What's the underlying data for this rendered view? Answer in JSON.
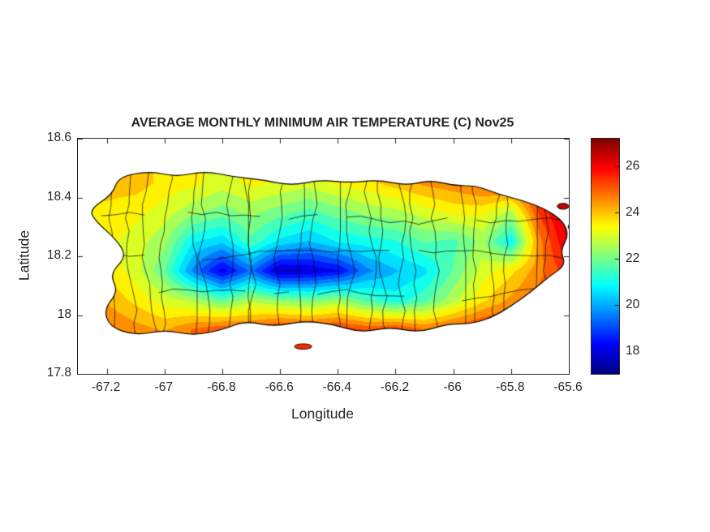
{
  "colors": {
    "background": "#ffffff",
    "axis": "#262626",
    "boundary_lines": "#000000",
    "island_outline": "#000000"
  },
  "chart_data": {
    "type": "heatmap",
    "title": "AVERAGE MONTHLY MINIMUM AIR TEMPERATURE (C) Nov25",
    "xlabel": "Longitude",
    "ylabel": "Latitude",
    "xlim": [
      -67.3,
      -65.6
    ],
    "ylim": [
      17.8,
      18.6
    ],
    "xticks": [
      -67.2,
      -67.0,
      -66.8,
      -66.6,
      -66.4,
      -66.2,
      -66.0,
      -65.8,
      -65.6
    ],
    "xtick_labels": [
      "-67.2",
      "-67",
      "-66.8",
      "-66.6",
      "-66.4",
      "-66.2",
      "-66",
      "-65.8",
      "-65.6"
    ],
    "yticks": [
      17.8,
      18.0,
      18.2,
      18.4,
      18.6
    ],
    "ytick_labels": [
      "17.8",
      "18",
      "18.2",
      "18.4",
      "18.6"
    ],
    "colormap": "jet",
    "clim": [
      17.0,
      27.2
    ],
    "colorbar_ticks": [
      18,
      20,
      22,
      24,
      26
    ],
    "colorbar_tick_labels": [
      "18",
      "20",
      "22",
      "24",
      "26"
    ],
    "contour_interval": 0.5,
    "legend": "colorbar-right",
    "grid": {
      "lons": [
        -67.2,
        -67.1,
        -67.0,
        -66.9,
        -66.8,
        -66.7,
        -66.6,
        -66.5,
        -66.4,
        -66.3,
        -66.2,
        -66.1,
        -66.0,
        -65.9,
        -65.8,
        -65.7,
        -65.6
      ],
      "lats": [
        17.95,
        18.05,
        18.15,
        18.25,
        18.35,
        18.45
      ],
      "values": [
        [
          24.8,
          24.5,
          24.2,
          24.8,
          25.2,
          25.0,
          25.6,
          25.4,
          25.6,
          25.2,
          25.4,
          24.8,
          25.2,
          25.6,
          25.8,
          25.4,
          25.6
        ],
        [
          24.2,
          23.6,
          23.0,
          22.6,
          21.8,
          22.6,
          22.2,
          22.0,
          22.4,
          21.6,
          21.0,
          21.6,
          22.6,
          23.6,
          24.4,
          25.0,
          25.4
        ],
        [
          23.6,
          23.0,
          21.8,
          19.6,
          18.0,
          19.4,
          17.6,
          17.8,
          18.2,
          19.6,
          20.2,
          20.6,
          21.8,
          23.0,
          23.6,
          24.6,
          25.6
        ],
        [
          23.4,
          23.0,
          22.4,
          20.8,
          20.4,
          21.6,
          20.6,
          20.2,
          20.8,
          21.0,
          21.2,
          21.8,
          21.6,
          22.4,
          20.8,
          24.6,
          26.4
        ],
        [
          23.6,
          23.4,
          23.0,
          22.4,
          22.0,
          22.4,
          22.0,
          21.6,
          22.0,
          22.4,
          22.6,
          23.0,
          23.4,
          23.4,
          22.6,
          25.4,
          26.6
        ],
        [
          24.0,
          24.0,
          23.6,
          23.4,
          23.0,
          23.4,
          23.2,
          23.0,
          23.4,
          23.6,
          24.0,
          24.4,
          24.6,
          25.0,
          25.4,
          26.0,
          26.6
        ]
      ]
    },
    "island_outline": [
      [
        -67.16,
        18.47
      ],
      [
        -67.05,
        18.49
      ],
      [
        -66.96,
        18.47
      ],
      [
        -66.86,
        18.49
      ],
      [
        -66.76,
        18.47
      ],
      [
        -66.66,
        18.46
      ],
      [
        -66.56,
        18.44
      ],
      [
        -66.46,
        18.46
      ],
      [
        -66.36,
        18.45
      ],
      [
        -66.26,
        18.46
      ],
      [
        -66.16,
        18.44
      ],
      [
        -66.08,
        18.46
      ],
      [
        -66.0,
        18.44
      ],
      [
        -65.92,
        18.44
      ],
      [
        -65.84,
        18.41
      ],
      [
        -65.76,
        18.39
      ],
      [
        -65.68,
        18.36
      ],
      [
        -65.62,
        18.32
      ],
      [
        -65.6,
        18.27
      ],
      [
        -65.63,
        18.22
      ],
      [
        -65.61,
        18.17
      ],
      [
        -65.67,
        18.13
      ],
      [
        -65.73,
        18.08
      ],
      [
        -65.8,
        18.03
      ],
      [
        -65.87,
        17.99
      ],
      [
        -65.94,
        17.97
      ],
      [
        -66.02,
        17.97
      ],
      [
        -66.12,
        17.94
      ],
      [
        -66.22,
        17.96
      ],
      [
        -66.32,
        17.94
      ],
      [
        -66.42,
        17.97
      ],
      [
        -66.52,
        17.98
      ],
      [
        -66.62,
        17.96
      ],
      [
        -66.72,
        17.98
      ],
      [
        -66.8,
        17.95
      ],
      [
        -66.9,
        17.93
      ],
      [
        -67.0,
        17.95
      ],
      [
        -67.1,
        17.93
      ],
      [
        -67.19,
        17.96
      ],
      [
        -67.21,
        18.02
      ],
      [
        -67.16,
        18.08
      ],
      [
        -67.19,
        18.14
      ],
      [
        -67.13,
        18.2
      ],
      [
        -67.17,
        18.26
      ],
      [
        -67.24,
        18.32
      ],
      [
        -67.26,
        18.36
      ],
      [
        -67.18,
        18.41
      ]
    ],
    "islets": [
      {
        "lon": -66.52,
        "lat": 17.893,
        "rx": 0.03,
        "ry": 0.009
      },
      {
        "lon": -65.62,
        "lat": 18.37,
        "rx": 0.02,
        "ry": 0.01
      },
      {
        "lon": -65.59,
        "lat": 18.3,
        "rx": 0.012,
        "ry": 0.012
      }
    ],
    "municipality_boundaries_shown": true
  }
}
